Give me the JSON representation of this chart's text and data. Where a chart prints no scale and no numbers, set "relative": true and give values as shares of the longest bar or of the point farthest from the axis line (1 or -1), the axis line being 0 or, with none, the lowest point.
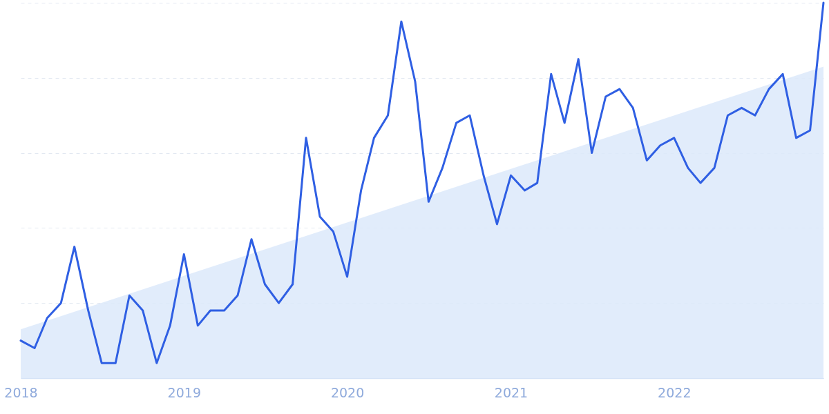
{
  "chart_data": {
    "type": "line",
    "relative": true,
    "grid": "y",
    "x": [
      "2018-01",
      "2018-02",
      "2018-03",
      "2018-04",
      "2018-05",
      "2018-06",
      "2018-07",
      "2018-08",
      "2018-09",
      "2018-10",
      "2018-11",
      "2018-12",
      "2019-01",
      "2019-02",
      "2019-03",
      "2019-04",
      "2019-05",
      "2019-06",
      "2019-07",
      "2019-08",
      "2019-09",
      "2019-10",
      "2019-11",
      "2019-12",
      "2020-01",
      "2020-02",
      "2020-03",
      "2020-04",
      "2020-05",
      "2020-06",
      "2020-07",
      "2020-08",
      "2020-09",
      "2020-10",
      "2020-11",
      "2020-12",
      "2021-01",
      "2021-02",
      "2021-03",
      "2021-04",
      "2021-05",
      "2021-06",
      "2021-07",
      "2021-08",
      "2021-09",
      "2021-10",
      "2021-11",
      "2021-12",
      "2022-01",
      "2022-02",
      "2022-03",
      "2022-04",
      "2022-05",
      "2022-06",
      "2022-07",
      "2022-08",
      "2022-09",
      "2022-10",
      "2022-11",
      "2022-12"
    ],
    "xlim": [
      "2018-01",
      "2022-12"
    ],
    "xticks": [
      "2018",
      "2019",
      "2020",
      "2021",
      "2022"
    ],
    "series": [
      {
        "type": "area",
        "color": "#dce9fa",
        "x": [
          "2018-01",
          "2022-12"
        ],
        "values": [
          0.13,
          0.83
        ]
      },
      {
        "type": "line",
        "color": "#2f5fe3",
        "values": [
          0.1,
          0.08,
          0.16,
          0.2,
          0.35,
          0.18,
          0.04,
          0.04,
          0.22,
          0.18,
          0.04,
          0.14,
          0.33,
          0.14,
          0.18,
          0.18,
          0.22,
          0.37,
          0.25,
          0.2,
          0.25,
          0.64,
          0.43,
          0.39,
          0.27,
          0.5,
          0.64,
          0.7,
          0.95,
          0.79,
          0.47,
          0.56,
          0.68,
          0.7,
          0.54,
          0.41,
          0.54,
          0.5,
          0.52,
          0.81,
          0.68,
          0.85,
          0.6,
          0.75,
          0.77,
          0.72,
          0.58,
          0.62,
          0.64,
          0.56,
          0.52,
          0.56,
          0.7,
          0.72,
          0.7,
          0.77,
          0.81,
          0.64,
          0.66,
          1
        ]
      }
    ]
  }
}
